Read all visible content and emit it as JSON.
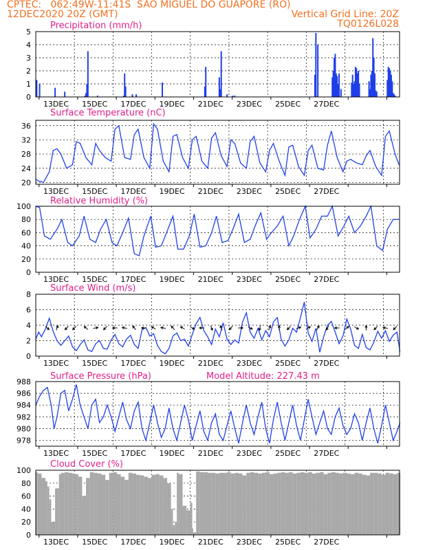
{
  "header": {
    "line1_left": "CPTEC:   062:49W-11:41S  SAO MIGUEL DO GUAPORE (RO)",
    "line2_left": "12DEC2020 20Z (GMT)",
    "line2_right": "Vertical Grid Line: 20Z",
    "line3_right": "TQ0126L028"
  },
  "x_axis": {
    "start": "12DEC2020 20Z",
    "end": "27DEC2020 00Z",
    "tick_labels": [
      "13DEC",
      "15DEC",
      "17DEC",
      "19DEC",
      "21DEC",
      "23DEC",
      "25DEC",
      "27DEC"
    ],
    "vertical_grid_hour": "20Z"
  },
  "colors": {
    "series": "#1f3fe8",
    "cloud": "#a9a9a9",
    "title": "#e0208a",
    "header": "#f07020"
  },
  "chart_data": [
    {
      "type": "bar",
      "title": "Precipitation (mm/h)",
      "ylim": [
        0,
        5
      ],
      "yticks": [
        0,
        1,
        2,
        3,
        4,
        5
      ],
      "x_days": [
        0.05,
        0.2,
        1.0,
        1.5,
        2.55,
        2.6,
        2.65,
        2.7,
        3.2,
        4.55,
        4.6,
        4.65,
        5.0,
        5.2,
        6.55,
        8.75,
        8.8,
        9.5,
        9.55,
        9.6,
        9.9,
        10.2,
        10.3,
        14.45,
        14.5,
        14.6,
        15.35,
        15.4,
        15.45,
        15.5,
        15.55,
        15.6,
        15.65,
        15.7,
        15.8,
        16.35,
        16.4,
        16.45,
        16.5,
        16.55,
        16.6,
        16.65,
        16.7,
        16.75,
        17.25,
        17.3,
        17.35,
        17.4,
        17.45,
        17.5,
        17.55,
        17.6,
        17.65,
        18.2,
        18.25,
        18.3,
        18.35,
        18.4,
        18.45,
        18.5,
        18.55,
        18.6
      ],
      "values": [
        1.3,
        1.0,
        0.7,
        0.4,
        0.1,
        0.3,
        1.0,
        3.5,
        0.1,
        0.1,
        1.8,
        0.8,
        0.2,
        0.2,
        1.1,
        0.8,
        2.3,
        1.5,
        0.6,
        3.5,
        0.2,
        0.1,
        0.1,
        1.7,
        4.9,
        4.0,
        1.5,
        2.0,
        3.0,
        3.3,
        1.8,
        1.6,
        1.0,
        1.8,
        0.6,
        1.1,
        1.7,
        1.0,
        1.2,
        2.3,
        2.2,
        1.8,
        2.0,
        1.0,
        1.2,
        0.6,
        1.7,
        2.0,
        4.5,
        3.0,
        1.8,
        0.5,
        0.4,
        1.3,
        2.3,
        2.2,
        2.0,
        1.7,
        1.2,
        0.3,
        0.2,
        0.1
      ]
    },
    {
      "type": "line",
      "title": "Surface Temperature (nC)",
      "ylim": [
        19.5,
        37.5
      ],
      "yticks": [
        20,
        24,
        28,
        32,
        36
      ],
      "x_days": [
        0,
        0.1,
        0.4,
        0.7,
        0.9,
        1.1,
        1.3,
        1.6,
        1.9,
        2.1,
        2.3,
        2.6,
        2.9,
        3.1,
        3.3,
        3.6,
        3.9,
        4.1,
        4.3,
        4.6,
        4.9,
        5.1,
        5.3,
        5.6,
        5.9,
        6.1,
        6.3,
        6.6,
        6.9,
        7.1,
        7.3,
        7.6,
        7.9,
        8.1,
        8.3,
        8.6,
        8.9,
        9.1,
        9.3,
        9.6,
        9.9,
        10.1,
        10.3,
        10.6,
        10.9,
        11.1,
        11.3,
        11.6,
        11.9,
        12.1,
        12.3,
        12.6,
        12.9,
        13.1,
        13.3,
        13.6,
        13.9,
        14.1,
        14.3,
        14.6,
        14.9,
        15.1,
        15.3,
        15.6,
        15.9,
        16.1,
        16.3,
        16.6,
        16.9,
        17.1,
        17.3,
        17.6,
        17.9,
        18.1,
        18.3,
        18.6,
        18.8
      ],
      "values": [
        21,
        20.5,
        20,
        23,
        29,
        29.5,
        28,
        24,
        25,
        31.5,
        31,
        27,
        25,
        31,
        29,
        27,
        26,
        35,
        36,
        27,
        26.5,
        33.5,
        35,
        27,
        24,
        36.5,
        35,
        26,
        23,
        33,
        33.5,
        27,
        24,
        32,
        33,
        26,
        24,
        32.5,
        34,
        27.5,
        24.5,
        32,
        31,
        25.5,
        24,
        31.5,
        33,
        25.5,
        23,
        29,
        31,
        26,
        22,
        30,
        30.5,
        24.5,
        22,
        29,
        30.5,
        24,
        23.5,
        30.5,
        34.5,
        27,
        23,
        26,
        26.5,
        25.5,
        25,
        27.5,
        29,
        24.5,
        22,
        33,
        34.5,
        28,
        25
      ]
    },
    {
      "type": "line",
      "title": "Relative Humidity (%)",
      "ylim": [
        0,
        100
      ],
      "yticks": [
        0,
        20,
        40,
        60,
        80,
        100
      ],
      "x_days": [
        0,
        0.2,
        0.45,
        0.75,
        1.1,
        1.35,
        1.65,
        1.9,
        2.25,
        2.5,
        2.8,
        3.1,
        3.35,
        3.65,
        3.95,
        4.2,
        4.5,
        4.8,
        5.1,
        5.35,
        5.6,
        5.95,
        6.2,
        6.5,
        6.8,
        7.1,
        7.35,
        7.65,
        7.95,
        8.2,
        8.5,
        8.8,
        9.1,
        9.35,
        9.65,
        9.95,
        10.2,
        10.5,
        10.8,
        11.1,
        11.35,
        11.65,
        11.95,
        12.2,
        12.5,
        12.8,
        13.1,
        13.35,
        13.65,
        13.95,
        14.2,
        14.5,
        14.8,
        15.1,
        15.35,
        15.65,
        15.95,
        16.2,
        16.5,
        16.8,
        17.1,
        17.35,
        17.65,
        17.95,
        18.2,
        18.5,
        18.8
      ],
      "values": [
        100,
        98,
        55,
        50,
        65,
        80,
        45,
        40,
        55,
        85,
        50,
        45,
        65,
        80,
        45,
        40,
        60,
        82,
        28,
        25,
        55,
        85,
        38,
        40,
        62,
        85,
        35,
        35,
        55,
        88,
        38,
        40,
        60,
        85,
        45,
        48,
        65,
        88,
        45,
        50,
        70,
        90,
        50,
        60,
        70,
        85,
        40,
        55,
        80,
        100,
        52,
        65,
        85,
        85,
        100,
        55,
        70,
        85,
        60,
        70,
        85,
        100,
        40,
        33,
        65,
        80,
        80
      ]
    },
    {
      "type": "line",
      "title": "Surface Wind (m/s)",
      "ylim": [
        0,
        8
      ],
      "yticks": [
        0,
        2,
        4,
        6,
        8
      ],
      "x_days": [
        0,
        0.15,
        0.3,
        0.5,
        0.7,
        0.9,
        1.1,
        1.3,
        1.5,
        1.7,
        1.9,
        2.1,
        2.3,
        2.5,
        2.7,
        2.9,
        3.1,
        3.3,
        3.5,
        3.7,
        3.9,
        4.1,
        4.3,
        4.5,
        4.7,
        4.9,
        5.1,
        5.3,
        5.5,
        5.7,
        5.9,
        6.1,
        6.3,
        6.5,
        6.7,
        6.9,
        7.1,
        7.3,
        7.5,
        7.7,
        7.9,
        8.1,
        8.3,
        8.5,
        8.7,
        8.9,
        9.1,
        9.3,
        9.5,
        9.7,
        9.9,
        10.1,
        10.3,
        10.5,
        10.7,
        10.9,
        11.1,
        11.3,
        11.5,
        11.7,
        11.9,
        12.1,
        12.3,
        12.5,
        12.7,
        12.9,
        13.1,
        13.3,
        13.5,
        13.7,
        13.9,
        14.1,
        14.3,
        14.5,
        14.7,
        14.9,
        15.1,
        15.3,
        15.5,
        15.7,
        15.9,
        16.1,
        16.3,
        16.5,
        16.7,
        16.9,
        17.1,
        17.3,
        17.5,
        17.7,
        17.9,
        18.1,
        18.3,
        18.5,
        18.7,
        18.85
      ],
      "values": [
        2.2,
        3.1,
        2.5,
        3.5,
        4.9,
        3.2,
        2.0,
        1.4,
        2.0,
        2.6,
        1.2,
        0.7,
        1.5,
        2.1,
        0.8,
        0.6,
        1.6,
        2.0,
        1.0,
        0.9,
        2.1,
        2.8,
        1.6,
        1.2,
        2.2,
        2.7,
        1.5,
        1.0,
        3.4,
        3.7,
        2.6,
        2.9,
        1.4,
        0.6,
        0.3,
        1.0,
        2.6,
        3.0,
        2.0,
        2.2,
        1.3,
        2.8,
        4.2,
        5.0,
        3.3,
        2.5,
        1.5,
        3.5,
        2.5,
        4.3,
        2.2,
        1.5,
        2.1,
        1.7,
        4.4,
        5.6,
        3.1,
        2.3,
        3.6,
        2.1,
        3.3,
        2.5,
        4.4,
        5.0,
        2.2,
        1.3,
        2.1,
        3.6,
        3.1,
        5.0,
        7.0,
        3.0,
        1.9,
        3.6,
        0.5,
        2.5,
        4.0,
        4.5,
        3.1,
        1.6,
        2.6,
        4.8,
        3.5,
        1.4,
        1.0,
        2.8,
        1.1,
        0.8,
        1.8,
        3.2,
        2.3,
        3.3,
        1.9,
        2.7,
        3.1,
        0.6
      ]
    },
    {
      "type": "line",
      "title": "Surface Pressure (hPa)",
      "annotation": "Model Altitude: 227.43 m",
      "ylim": [
        977,
        988
      ],
      "yticks": [
        978,
        980,
        982,
        984,
        986,
        988
      ],
      "x_days": [
        0,
        0.2,
        0.4,
        0.6,
        0.8,
        0.95,
        1.1,
        1.3,
        1.5,
        1.7,
        1.9,
        2.1,
        2.3,
        2.5,
        2.7,
        2.9,
        3.1,
        3.3,
        3.5,
        3.7,
        3.9,
        4.1,
        4.3,
        4.5,
        4.7,
        4.9,
        5.1,
        5.3,
        5.5,
        5.7,
        5.9,
        6.1,
        6.3,
        6.5,
        6.7,
        6.9,
        7.1,
        7.3,
        7.5,
        7.7,
        7.9,
        8.1,
        8.3,
        8.5,
        8.7,
        8.9,
        9.1,
        9.3,
        9.5,
        9.7,
        9.9,
        10.1,
        10.3,
        10.5,
        10.7,
        10.9,
        11.1,
        11.3,
        11.5,
        11.7,
        11.9,
        12.1,
        12.3,
        12.5,
        12.7,
        12.9,
        13.1,
        13.3,
        13.5,
        13.7,
        13.9,
        14.1,
        14.3,
        14.5,
        14.7,
        14.9,
        15.1,
        15.3,
        15.5,
        15.7,
        15.9,
        16.1,
        16.3,
        16.5,
        16.7,
        16.9,
        17.1,
        17.3,
        17.5,
        17.7,
        17.9,
        18.1,
        18.3,
        18.5,
        18.7,
        18.85
      ],
      "values": [
        984,
        985.5,
        986.5,
        987,
        984,
        980,
        982,
        986,
        986.5,
        983,
        985,
        987.5,
        984,
        982,
        980,
        984,
        985,
        981,
        982,
        984,
        982,
        979.5,
        982,
        984.5,
        981.5,
        980,
        983,
        984.5,
        980,
        978,
        981,
        984,
        981,
        978.5,
        980,
        983.5,
        980,
        978,
        981,
        984,
        981.5,
        978,
        980.5,
        983,
        979.5,
        978,
        981,
        982.5,
        979,
        978,
        980.5,
        983,
        980,
        977.5,
        981,
        984,
        981,
        979,
        982,
        984.5,
        980,
        977.5,
        981.5,
        984.5,
        981,
        978,
        981,
        984,
        980.5,
        978,
        981.5,
        985,
        982,
        979,
        981,
        983,
        980,
        979,
        982,
        983.5,
        980.5,
        979,
        980,
        982.5,
        981,
        978,
        981,
        983.5,
        980,
        977.5,
        980.5,
        984,
        981,
        978,
        979.5,
        981
      ]
    },
    {
      "type": "area",
      "title": "Cloud Cover (%)",
      "ylim": [
        0,
        100
      ],
      "yticks": [
        0,
        20,
        40,
        60,
        80,
        100
      ],
      "x_days": [
        0,
        0.1,
        0.3,
        0.5,
        0.6,
        0.7,
        0.8,
        1.0,
        1.2,
        1.3,
        1.5,
        1.7,
        1.9,
        2.0,
        2.2,
        2.4,
        2.6,
        2.8,
        3.0,
        3.2,
        3.4,
        3.6,
        3.8,
        4.0,
        4.2,
        4.4,
        4.6,
        4.8,
        5.0,
        5.2,
        5.4,
        5.6,
        5.8,
        6.0,
        6.2,
        6.4,
        6.6,
        6.8,
        7.0,
        7.1,
        7.2,
        7.3,
        7.4,
        7.6,
        7.8,
        8.0,
        8.1,
        8.15,
        8.3,
        8.5,
        8.7,
        8.9,
        9.1,
        9.3,
        9.5,
        9.7,
        9.9,
        10.1,
        10.3,
        10.5,
        10.7,
        10.9,
        11.1,
        11.3,
        11.5,
        11.7,
        11.9,
        12.1,
        12.3,
        12.5,
        12.7,
        12.9,
        13.1,
        13.3,
        13.5,
        13.7,
        13.9,
        14.1,
        14.3,
        14.5,
        14.7,
        14.9,
        15.1,
        15.3,
        15.5,
        15.7,
        15.9,
        16.1,
        16.3,
        16.5,
        16.7,
        16.9,
        17.1,
        17.3,
        17.5,
        17.7,
        17.9,
        18.1,
        18.3,
        18.5,
        18.7,
        18.85
      ],
      "values": [
        97,
        95,
        88,
        83,
        75,
        55,
        20,
        72,
        94,
        96,
        97,
        96,
        95,
        94,
        90,
        60,
        88,
        97,
        96,
        95,
        93,
        85,
        96,
        97,
        94,
        90,
        85,
        96,
        95,
        93,
        92,
        90,
        88,
        93,
        94,
        92,
        88,
        80,
        40,
        15,
        20,
        96,
        94,
        45,
        38,
        50,
        10,
        4,
        98,
        97,
        97,
        96,
        96,
        95,
        96,
        96,
        97,
        95,
        96,
        95,
        92,
        96,
        97,
        96,
        95,
        96,
        97,
        94,
        95,
        96,
        97,
        96,
        97,
        95,
        96,
        97,
        96,
        97,
        95,
        96,
        97,
        94,
        96,
        97,
        96,
        95,
        96,
        95,
        94,
        96,
        95,
        93,
        92,
        96,
        96,
        95,
        93,
        96,
        95,
        94,
        96,
        95
      ]
    },
    {
      "type": "scatter",
      "title": "wind-direction-arrows",
      "x_days": [
        0.6,
        1.1,
        1.6,
        2.0,
        2.6,
        3.1,
        3.6,
        4.1,
        4.6,
        5.1,
        5.6,
        6.1,
        6.6,
        7.1,
        7.6,
        8.1,
        8.6,
        9.1,
        9.6,
        10.1,
        10.6,
        11.1,
        11.6,
        12.1,
        12.6,
        13.1,
        13.6,
        14.1,
        14.6,
        15.1,
        15.6,
        16.1,
        16.6,
        17.1,
        17.6,
        18.1,
        18.6
      ],
      "from_direction_deg": [
        315,
        200,
        45,
        45,
        130,
        260,
        45,
        90,
        100,
        140,
        90,
        120,
        100,
        140,
        120,
        300,
        90,
        340,
        160,
        45,
        270,
        300,
        10,
        200,
        180,
        45,
        250,
        240,
        210,
        30,
        90,
        230,
        300,
        180,
        45,
        100,
        45
      ]
    }
  ]
}
